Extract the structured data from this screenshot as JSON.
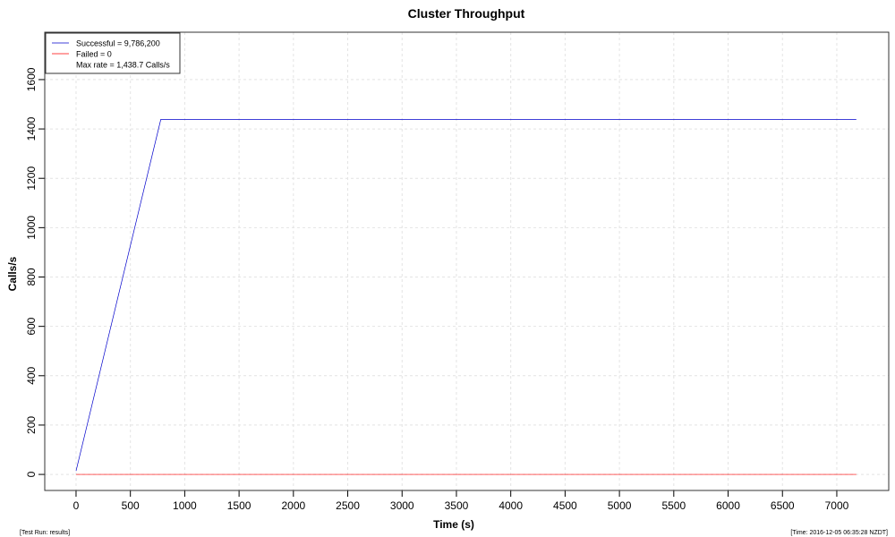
{
  "chart_data": {
    "type": "line",
    "title": "Cluster Throughput",
    "x_label": "Time (s)",
    "y_label": "Calls/s",
    "x": [
      0,
      780,
      7180
    ],
    "series": [
      {
        "name": "Successful = 9,786,200",
        "color": "#0000cc",
        "values": [
          14,
          1438.7,
          1438.7
        ]
      },
      {
        "name": "Failed = 0",
        "color": "#ff0000",
        "values": [
          0,
          0,
          0
        ]
      }
    ],
    "legend_note": "Max rate = 1,438.7 Calls/s",
    "legend": "top-left",
    "grid": true,
    "xlim": [
      -288,
      7478
    ],
    "ylim": [
      -65,
      1792
    ],
    "xticks": [
      0,
      500,
      1000,
      1500,
      2000,
      2500,
      3000,
      3500,
      4000,
      4500,
      5000,
      5500,
      6000,
      6500,
      7000
    ],
    "yticks": [
      0,
      200,
      400,
      600,
      800,
      1000,
      1200,
      1400,
      1600
    ],
    "footer_left": "[Test Run: results]",
    "footer_right": "[Time: 2016-12-05 06:35:28 NZDT]"
  }
}
